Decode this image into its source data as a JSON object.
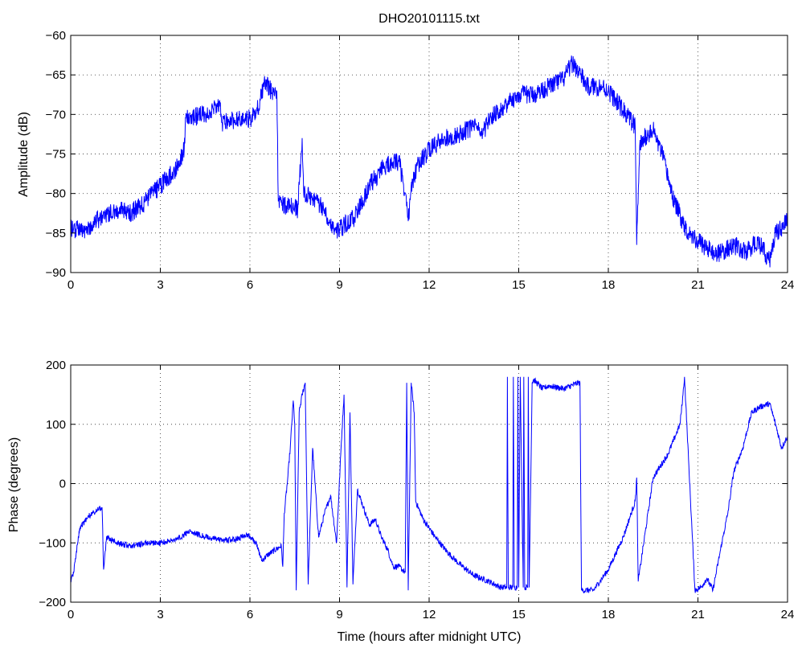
{
  "figure_title": "DHO20101115.txt",
  "colors": {
    "series": "#0000ff",
    "axes": "#000000",
    "grid": "#4a4a4a",
    "background": "#ffffff"
  },
  "chart_data": [
    {
      "type": "line",
      "title": "DHO20101115.txt",
      "xlabel": "",
      "ylabel": "Amplitude (dB)",
      "xlim": [
        0,
        24
      ],
      "ylim": [
        -90,
        -60
      ],
      "xticks": [
        0,
        3,
        6,
        9,
        12,
        15,
        18,
        21,
        24
      ],
      "yticks": [
        -90,
        -85,
        -80,
        -75,
        -70,
        -65,
        -60
      ],
      "grid": true,
      "noise": 1.2,
      "series": [
        {
          "x": [
            0,
            0.5,
            1,
            1.5,
            2,
            2.5,
            3,
            3.5,
            3.8,
            3.85,
            4.5,
            5,
            5.05,
            5.5,
            6,
            6.2,
            6.5,
            6.7,
            6.9,
            6.95,
            7.2,
            7.6,
            7.75,
            7.8,
            7.9,
            8.1,
            8.5,
            8.8,
            9,
            9.5,
            10,
            10.5,
            11,
            11.2,
            11.3,
            11.4,
            11.6,
            12,
            12.5,
            13,
            13.5,
            13.8,
            14,
            14.5,
            15,
            15.5,
            16,
            16.5,
            16.8,
            17,
            17.3,
            17.6,
            17.8,
            18,
            18.5,
            18.9,
            18.95,
            19.05,
            19.2,
            19.5,
            19.8,
            20.2,
            20.6,
            21,
            21.5,
            21.8,
            22.2,
            22.6,
            23,
            23.4,
            23.6,
            24
          ],
          "y": [
            -84.5,
            -84.5,
            -83,
            -82,
            -82.5,
            -81,
            -79,
            -77,
            -74.5,
            -70.5,
            -70,
            -69,
            -71,
            -70.7,
            -70.5,
            -70,
            -66,
            -67,
            -67,
            -81,
            -81.5,
            -82,
            -73,
            -80,
            -80,
            -80.5,
            -82,
            -84.5,
            -84.5,
            -83,
            -79,
            -76.5,
            -76,
            -80,
            -83.5,
            -79,
            -76.5,
            -74.5,
            -73,
            -72.5,
            -71.5,
            -72.5,
            -70.5,
            -69,
            -67.5,
            -67.5,
            -66.5,
            -65.5,
            -63.5,
            -64.5,
            -66.5,
            -66.5,
            -66.5,
            -67,
            -69.5,
            -71.5,
            -86.5,
            -74,
            -73,
            -72,
            -75,
            -81,
            -84.5,
            -86,
            -87.5,
            -87.5,
            -86.5,
            -87.5,
            -86,
            -88.5,
            -85,
            -83.5
          ]
        }
      ]
    },
    {
      "type": "line",
      "title": "",
      "xlabel": "Time (hours after midnight UTC)",
      "ylabel": "Phase (degrees)",
      "xlim": [
        0,
        24
      ],
      "ylim": [
        -200,
        200
      ],
      "xticks": [
        0,
        3,
        6,
        9,
        12,
        15,
        18,
        21,
        24
      ],
      "yticks": [
        -200,
        -100,
        0,
        100,
        200
      ],
      "grid": true,
      "noise": 5,
      "series": [
        {
          "x": [
            0,
            0.1,
            0.3,
            0.6,
            0.9,
            1.05,
            1.1,
            1.2,
            1.5,
            2,
            2.5,
            3,
            3.5,
            4,
            4.5,
            5,
            5.5,
            5.9,
            6.2,
            6.4,
            6.6,
            6.9,
            7.05,
            7.1,
            7.15,
            7.25,
            7.35,
            7.45,
            7.5,
            7.55,
            7.65,
            7.75,
            7.85,
            7.95,
            8.1,
            8.3,
            8.5,
            8.7,
            8.9,
            9.05,
            9.15,
            9.25,
            9.35,
            9.45,
            9.6,
            9.8,
            10,
            10.2,
            10.4,
            10.6,
            10.8,
            11,
            11.2,
            11.25,
            11.3,
            11.4,
            11.5,
            11.55,
            11.8,
            12.2,
            12.6,
            13,
            13.5,
            14,
            14.4,
            14.6,
            14.62,
            14.65,
            14.8,
            14.82,
            14.85,
            14.95,
            14.97,
            15.0,
            15.05,
            15.15,
            15.17,
            15.2,
            15.3,
            15.32,
            15.35,
            15.45,
            15.5,
            15.8,
            16,
            16.5,
            17,
            17.05,
            17.1,
            17.5,
            18,
            18.5,
            18.9,
            18.95,
            19,
            19.5,
            20,
            20.4,
            20.5,
            20.55,
            20.9,
            21.1,
            21.3,
            21.5,
            21.8,
            22,
            22.2,
            22.5,
            22.8,
            23.1,
            23.4,
            23.6,
            23.8,
            24
          ],
          "y": [
            -165,
            -150,
            -75,
            -55,
            -45,
            -40,
            -145,
            -90,
            -100,
            -105,
            -100,
            -100,
            -95,
            -80,
            -90,
            -95,
            -95,
            -85,
            -100,
            -130,
            -120,
            -110,
            -105,
            -140,
            -50,
            0,
            60,
            140,
            100,
            -180,
            120,
            150,
            170,
            -170,
            60,
            -90,
            -50,
            -20,
            -100,
            60,
            150,
            -175,
            120,
            -170,
            -10,
            -40,
            -70,
            -60,
            -90,
            -110,
            -140,
            -140,
            -150,
            170,
            -180,
            170,
            120,
            -30,
            -60,
            -90,
            -115,
            -135,
            -155,
            -165,
            -175,
            -175,
            180,
            -175,
            -175,
            180,
            -175,
            -175,
            180,
            -175,
            180,
            -175,
            180,
            -175,
            -175,
            180,
            -175,
            170,
            175,
            160,
            165,
            160,
            170,
            170,
            -180,
            -180,
            -145,
            -90,
            -30,
            10,
            -165,
            10,
            50,
            100,
            150,
            180,
            -180,
            -175,
            -160,
            -180,
            -100,
            -50,
            20,
            60,
            120,
            130,
            135,
            100,
            60,
            80
          ]
        }
      ]
    }
  ]
}
